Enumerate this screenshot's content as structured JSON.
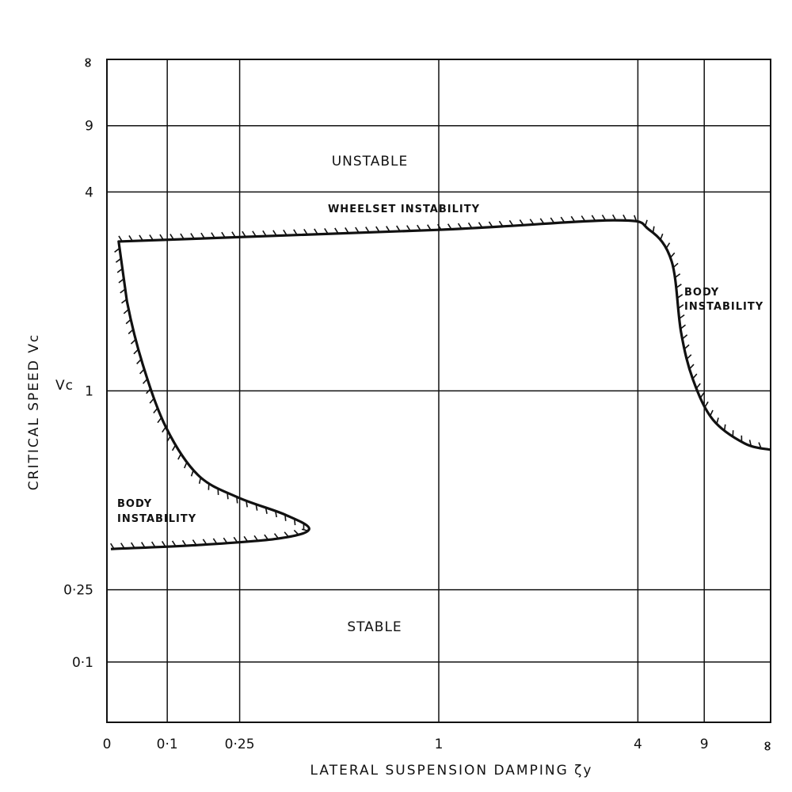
{
  "chart_data": {
    "type": "line",
    "xlabel": "LATERAL SUSPENSION DAMPING ζy",
    "ylabel": "CRITICAL SPEED Vc",
    "ylabel_short": "Vc",
    "x_scale": "x/(1+x)",
    "y_scale": "y/(1+y)",
    "xlim": [
      0,
      "∞"
    ],
    "ylim": [
      0,
      "∞"
    ],
    "grid": true,
    "x_ticks": [
      {
        "value": 0,
        "label": "0"
      },
      {
        "value": 0.1,
        "label": "0·1"
      },
      {
        "value": 0.25,
        "label": "0·25"
      },
      {
        "value": 1,
        "label": "1"
      },
      {
        "value": 4,
        "label": "4"
      },
      {
        "value": 9,
        "label": "9"
      },
      {
        "value": "∞",
        "label": "∞"
      }
    ],
    "y_ticks": [
      {
        "value": 0.1,
        "label": "0·1"
      },
      {
        "value": 0.25,
        "label": "0·25"
      },
      {
        "value": 1,
        "label": "1"
      },
      {
        "value": 4,
        "label": "4"
      },
      {
        "value": 9,
        "label": "9"
      },
      {
        "value": "∞",
        "label": "∞"
      }
    ],
    "boundary": {
      "x": [
        0.006,
        0.159,
        0.345,
        0.438,
        0.367,
        0.245,
        0.159,
        0.098,
        0.057,
        0.031,
        0.018,
        1.0,
        3.23,
        4.47,
        5.71,
        6.41,
        7.55,
        10.5,
        24.6,
        "∞"
      ],
      "y": [
        0.354,
        0.365,
        0.383,
        0.411,
        0.456,
        0.514,
        0.595,
        0.8,
        1.174,
        1.745,
        2.64,
        2.89,
        3.12,
        2.89,
        2.28,
        1.43,
        1.07,
        0.84,
        0.726,
        0.698
      ]
    },
    "annotations": {
      "unstable": "UNSTABLE",
      "stable": "STABLE",
      "wheelset": "WHEELSET INSTABILITY",
      "body_right_1": "BODY",
      "body_right_2": "INSTABILITY",
      "body_left_1": "BODY",
      "body_left_2": "INSTABILITY"
    }
  }
}
